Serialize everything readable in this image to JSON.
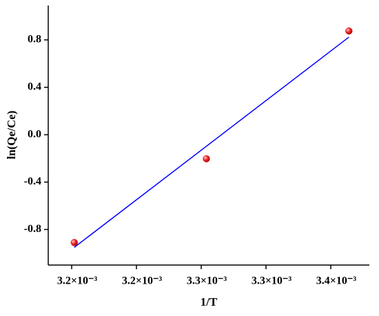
{
  "chart_data": {
    "type": "scatter",
    "x_label": "1/T",
    "y_label": "ln(Qe/Ce)",
    "xlim": [
      0.0031819,
      0.0034298
    ],
    "ylim": [
      -1.1,
      1.09
    ],
    "xticks": [
      {
        "value": 0.0032,
        "label": "3.2×10⁻³"
      },
      {
        "value": 0.00325,
        "label": "3.2×10⁻³"
      },
      {
        "value": 0.0033,
        "label": "3.3×10⁻³"
      },
      {
        "value": 0.00335,
        "label": "3.3×10⁻³"
      },
      {
        "value": 0.0034,
        "label": "3.4×10⁻³"
      }
    ],
    "yticks": [
      -0.8,
      -0.4,
      {
        "value": 0,
        "label": "0.0"
      },
      0.4,
      0.8
    ],
    "series": [
      {
        "type": "scatter",
        "color": "#e8242a",
        "x": [
          0.003202,
          0.003304,
          0.003414
        ],
        "values": [
          -0.91,
          -0.203,
          0.875
        ]
      },
      {
        "type": "line",
        "color": "#0000ff",
        "x": [
          0.003202,
          0.003414
        ],
        "values": [
          -0.951,
          0.823
        ]
      }
    ]
  }
}
